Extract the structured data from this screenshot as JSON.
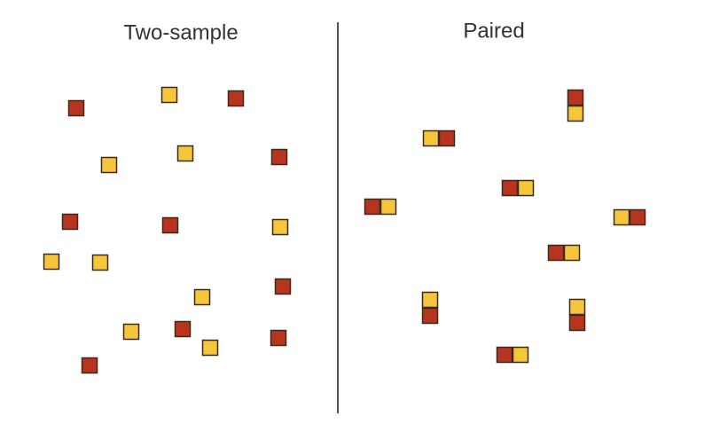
{
  "panels": [
    {
      "title": "Two-sample"
    },
    {
      "title": "Paired"
    }
  ]
}
